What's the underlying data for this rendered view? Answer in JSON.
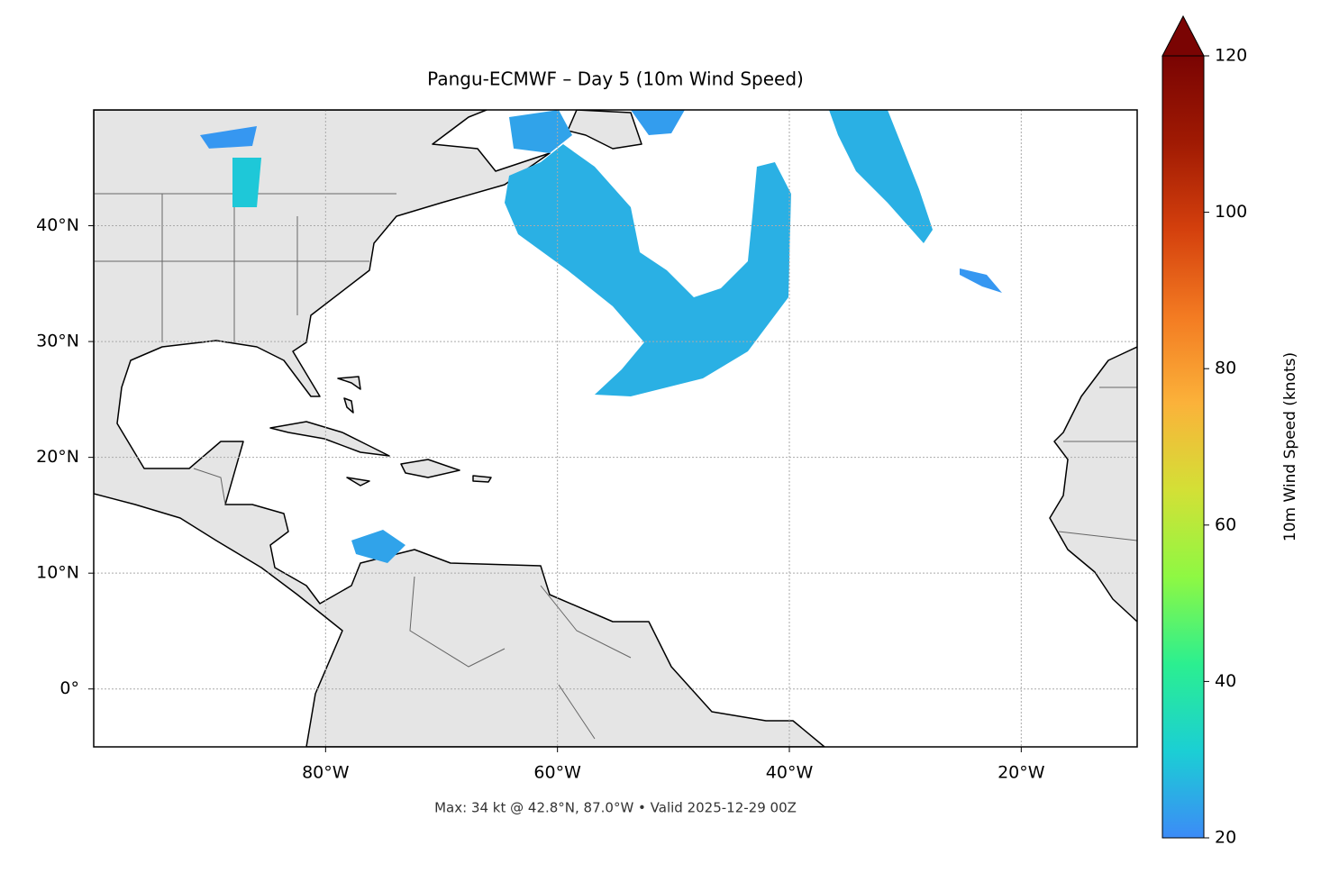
{
  "chart_data": {
    "type": "map",
    "title": "Pangu-ECMWF – Day 5 (10m Wind Speed)",
    "annotation": "Max: 34 kt @ 42.8°N, 87.0°W • Valid 2025-12-29 00Z",
    "xlim": [
      -100,
      -10
    ],
    "ylim": [
      -5,
      50
    ],
    "xticks": [
      {
        "value": -80,
        "label": "80°W"
      },
      {
        "value": -60,
        "label": "60°W"
      },
      {
        "value": -40,
        "label": "40°W"
      },
      {
        "value": -20,
        "label": "20°W"
      }
    ],
    "yticks": [
      {
        "value": 0,
        "label": "0°"
      },
      {
        "value": 10,
        "label": "10°N"
      },
      {
        "value": 20,
        "label": "20°N"
      },
      {
        "value": 30,
        "label": "30°N"
      },
      {
        "value": 40,
        "label": "40°N"
      }
    ],
    "grid": true,
    "colorbar": {
      "label": "10m Wind Speed (knots)",
      "lim": [
        20,
        120
      ],
      "ticks": [
        20,
        40,
        60,
        80,
        100,
        120
      ],
      "extend": "max",
      "colors": [
        "#3c8bf7",
        "#1bcfd4",
        "#2bef90",
        "#8ef843",
        "#d3e036",
        "#fbb23a",
        "#f37b22",
        "#d4400d",
        "#a01a03",
        "#7a0403"
      ]
    },
    "wind_areas": [
      {
        "lon": [
          -64.17,
          -61.45,
          -59.51,
          -56.79,
          -53.68,
          -52.9,
          -50.57,
          -48.24,
          -45.91,
          -43.58,
          -43.19,
          -42.8,
          -41.25,
          -39.85,
          -40.08,
          -43.58,
          -47.46,
          -53.68,
          -56.79,
          -54.46,
          -52.52,
          -55.23,
          -59.12,
          -63.39,
          -64.56
        ],
        "lat": [
          44.32,
          45.49,
          47.04,
          45.1,
          41.6,
          37.71,
          36.15,
          33.82,
          34.6,
          36.93,
          40.82,
          45.1,
          45.49,
          42.77,
          33.82,
          29.15,
          26.82,
          25.26,
          25.42,
          27.6,
          29.93,
          33.04,
          36.15,
          39.26,
          41.99
        ],
        "speed": 26
      },
      {
        "lon": [
          -36.58,
          -31.53,
          -28.81,
          -27.64,
          -28.42,
          -31.53,
          -34.25,
          -35.8
        ],
        "lat": [
          50,
          50,
          43.15,
          39.65,
          38.49,
          41.99,
          44.71,
          47.82
        ],
        "speed": 26
      },
      {
        "lon": [
          -64.17,
          -59.9,
          -58.73,
          -60.67,
          -63.78
        ],
        "lat": [
          49.38,
          50,
          47.82,
          46.27,
          46.66
        ],
        "speed": 24
      },
      {
        "lon": [
          -53.68,
          -49.02,
          -50.18,
          -52.13
        ],
        "lat": [
          50,
          50,
          47.98,
          47.82
        ],
        "speed": 23
      },
      {
        "lon": [
          -88.03,
          -85.54,
          -85.93,
          -88.03
        ],
        "lat": [
          45.88,
          45.88,
          41.6,
          41.6
        ],
        "speed": 30
      },
      {
        "lon": [
          -90.83,
          -85.93,
          -86.32,
          -90.05
        ],
        "lat": [
          47.82,
          48.6,
          46.89,
          46.66
        ],
        "speed": 22
      },
      {
        "lon": [
          -77.77,
          -75.05,
          -73.11,
          -74.66,
          -77.38
        ],
        "lat": [
          12.82,
          13.75,
          12.43,
          10.87,
          11.65
        ],
        "speed": 24
      },
      {
        "lon": [
          -25.31,
          -22.98,
          -21.66,
          -23.37,
          -25.31
        ],
        "lat": [
          36.31,
          35.76,
          34.21,
          34.75,
          35.76
        ],
        "speed": 22
      }
    ]
  }
}
